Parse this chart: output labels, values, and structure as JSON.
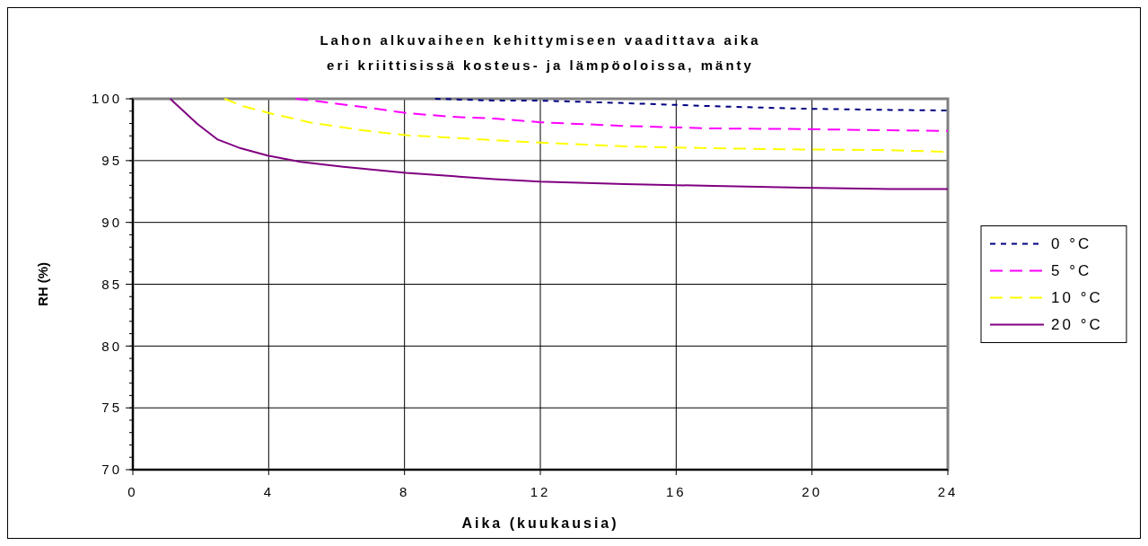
{
  "chart_data": {
    "type": "line",
    "title": "Lahon alkuvaiheen kehittymiseen vaadittava aika",
    "subtitle": "eri kriittisissä kosteus- ja lämpöoloissa, mänty",
    "xlabel": "Aika (kuukausia)",
    "ylabel": "RH (%)",
    "xlim": [
      0,
      24
    ],
    "xticks": [
      0,
      4,
      8,
      12,
      16,
      20,
      24
    ],
    "ylim": [
      70,
      100
    ],
    "yticks": [
      70,
      75,
      80,
      85,
      90,
      95,
      100
    ],
    "grid": true,
    "legend": "right",
    "marker": "none",
    "series": [
      {
        "name": "0 °C",
        "color": "#000080",
        "line_style": "dotted",
        "x": [
          8.9,
          10.65,
          12,
          14.5,
          17.1,
          19.7,
          22.3,
          24
        ],
        "values": [
          100,
          99.85,
          99.85,
          99.65,
          99.4,
          99.2,
          99.1,
          99.05
        ]
      },
      {
        "name": "5 °C",
        "color": "#ff00ff",
        "line_style": "dashed",
        "x": [
          4.8,
          5.45,
          6.75,
          8.05,
          9.35,
          10.65,
          12,
          14.5,
          17.1,
          19.7,
          22.3,
          24
        ],
        "values": [
          100,
          99.8,
          99.35,
          98.85,
          98.55,
          98.4,
          98.1,
          97.8,
          97.6,
          97.55,
          97.45,
          97.4
        ]
      },
      {
        "name": "10 °C",
        "color": "#ffff00",
        "line_style": "dashed",
        "x": [
          2.7,
          3.25,
          4,
          5.2,
          6.75,
          8.05,
          10.65,
          12,
          14.5,
          17.1,
          19.7,
          22.3,
          24
        ],
        "values": [
          100,
          99.4,
          98.85,
          98.1,
          97.45,
          97.05,
          96.65,
          96.45,
          96.15,
          96,
          95.9,
          95.85,
          95.7
        ]
      },
      {
        "name": "20 °C",
        "color": "#800080",
        "line_style": "solid",
        "x": [
          1.1,
          1.9,
          2.5,
          3.17,
          3.97,
          4.94,
          6.2,
          8.05,
          10.65,
          12,
          14.5,
          17.1,
          19.7,
          22.3,
          24
        ],
        "values": [
          100,
          97.97,
          96.7,
          96,
          95.4,
          94.9,
          94.5,
          94,
          93.5,
          93.3,
          93.1,
          92.95,
          92.8,
          92.7,
          92.7
        ]
      }
    ]
  }
}
